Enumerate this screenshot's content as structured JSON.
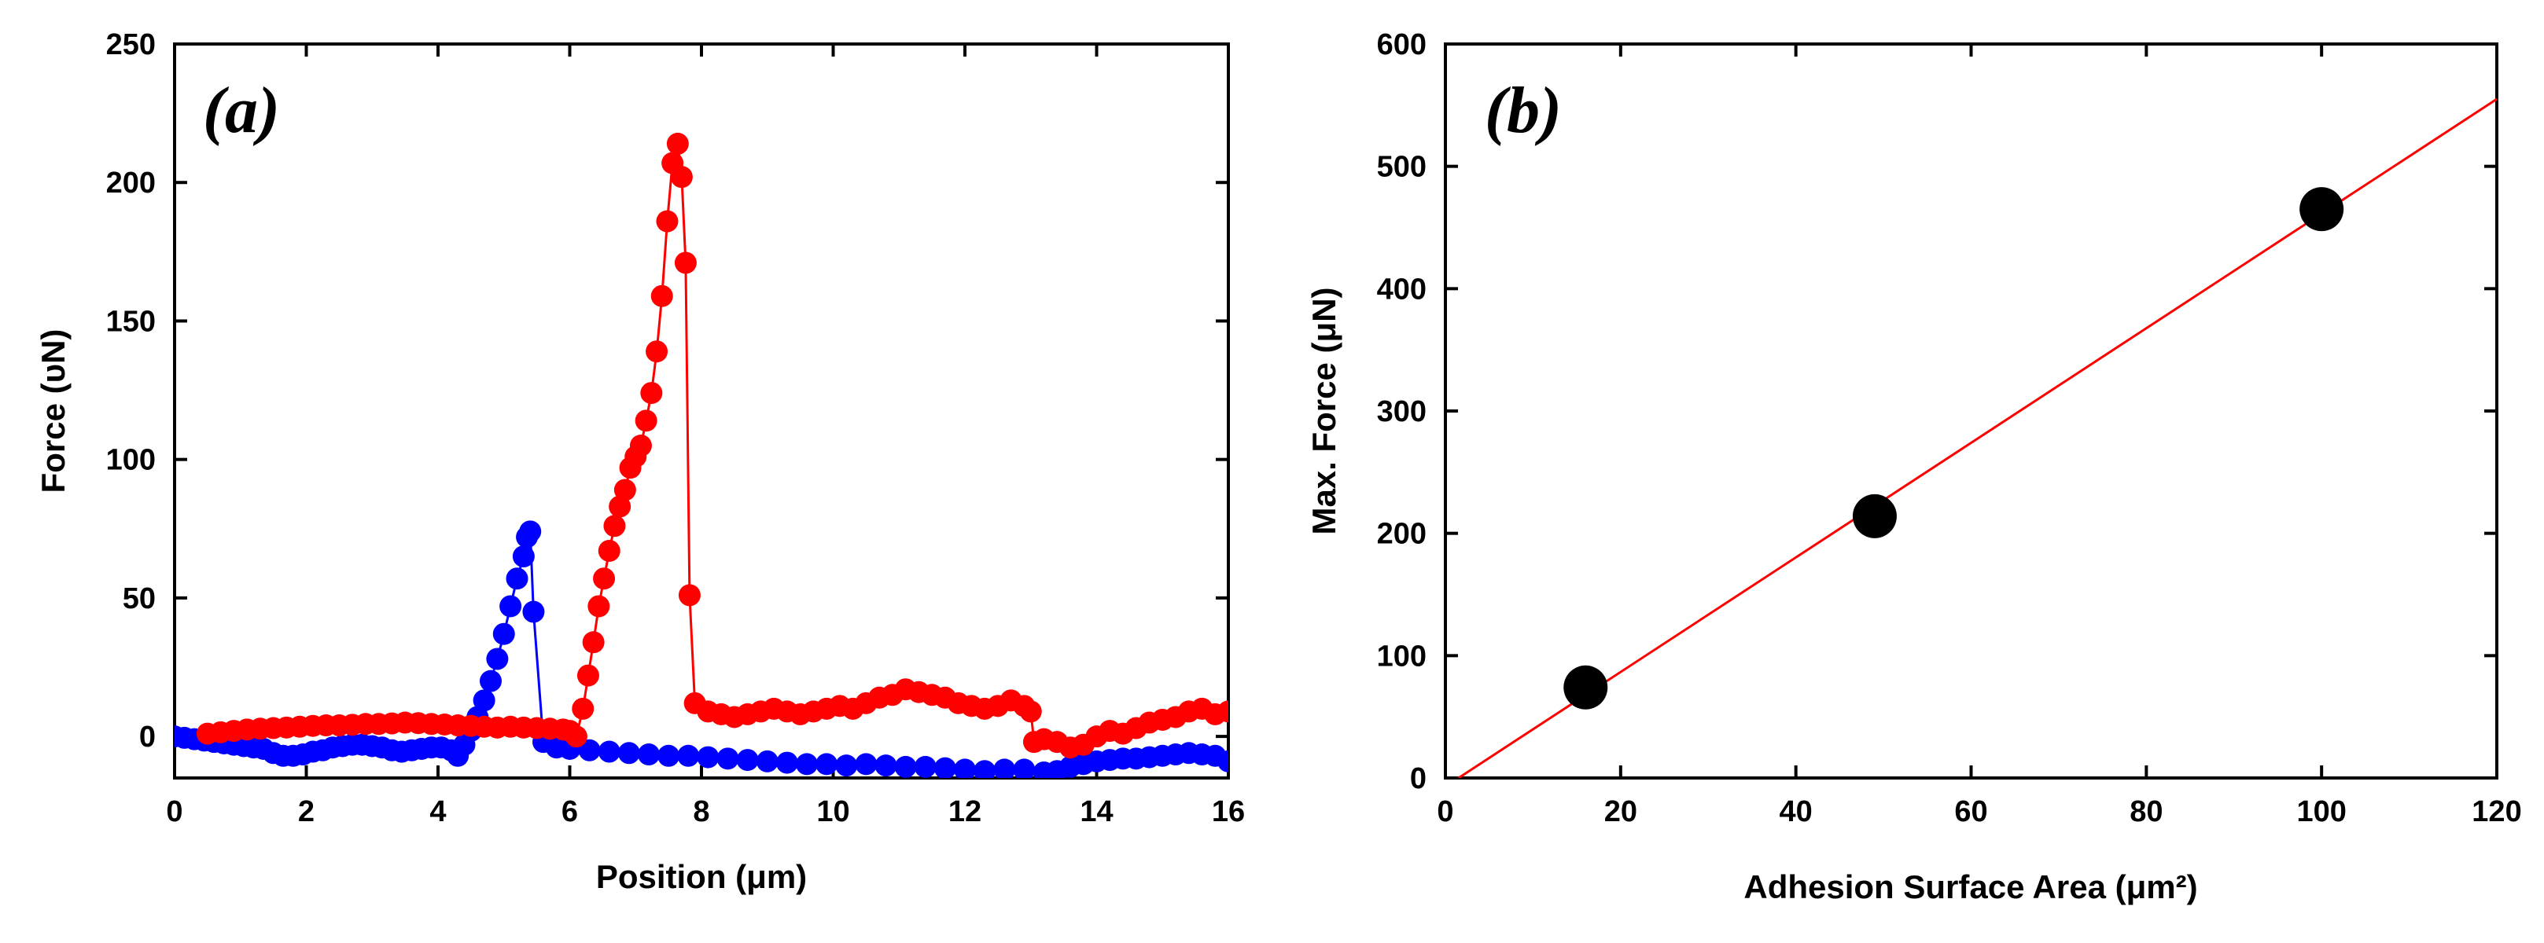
{
  "chart_data": [
    {
      "type": "scatter",
      "panel_label": "(a)",
      "xlabel": "Position (μm)",
      "ylabel": "Force (υN)",
      "xlim": [
        0,
        16
      ],
      "ylim": [
        -15,
        250
      ],
      "xticks": [
        0,
        2,
        4,
        6,
        8,
        10,
        12,
        14,
        16
      ],
      "yticks": [
        0,
        50,
        100,
        150,
        200,
        250
      ],
      "series": [
        {
          "name": "blue",
          "color": "#0000ff",
          "points": [
            [
              0,
              0
            ],
            [
              0.15,
              -0.5
            ],
            [
              0.3,
              -1
            ],
            [
              0.45,
              -1.5
            ],
            [
              0.6,
              -2
            ],
            [
              0.75,
              -2.5
            ],
            [
              0.9,
              -3
            ],
            [
              1.05,
              -3.5
            ],
            [
              1.2,
              -4
            ],
            [
              1.35,
              -4.5
            ],
            [
              1.5,
              -6
            ],
            [
              1.65,
              -7
            ],
            [
              1.8,
              -7
            ],
            [
              1.95,
              -6.5
            ],
            [
              2.1,
              -5.5
            ],
            [
              2.25,
              -5
            ],
            [
              2.4,
              -4
            ],
            [
              2.55,
              -3.5
            ],
            [
              2.7,
              -3
            ],
            [
              2.85,
              -3
            ],
            [
              3.0,
              -3.5
            ],
            [
              3.15,
              -4
            ],
            [
              3.3,
              -5
            ],
            [
              3.45,
              -5.5
            ],
            [
              3.6,
              -5
            ],
            [
              3.75,
              -4.5
            ],
            [
              3.9,
              -4
            ],
            [
              4.05,
              -4
            ],
            [
              4.2,
              -5
            ],
            [
              4.3,
              -7
            ],
            [
              4.4,
              -3
            ],
            [
              4.5,
              2
            ],
            [
              4.6,
              7
            ],
            [
              4.7,
              13
            ],
            [
              4.8,
              20
            ],
            [
              4.9,
              28
            ],
            [
              5.0,
              37
            ],
            [
              5.1,
              47
            ],
            [
              5.2,
              57
            ],
            [
              5.3,
              65
            ],
            [
              5.35,
              72
            ],
            [
              5.4,
              74
            ],
            [
              5.45,
              45
            ],
            [
              5.6,
              -2
            ],
            [
              5.8,
              -4
            ],
            [
              6.0,
              -4.5
            ],
            [
              6.3,
              -5
            ],
            [
              6.6,
              -5.5
            ],
            [
              6.9,
              -6
            ],
            [
              7.2,
              -6.5
            ],
            [
              7.5,
              -7
            ],
            [
              7.8,
              -7
            ],
            [
              8.1,
              -7.5
            ],
            [
              8.4,
              -8
            ],
            [
              8.7,
              -8.5
            ],
            [
              9.0,
              -9
            ],
            [
              9.3,
              -9.5
            ],
            [
              9.6,
              -10
            ],
            [
              9.9,
              -10
            ],
            [
              10.2,
              -10.5
            ],
            [
              10.5,
              -10
            ],
            [
              10.8,
              -10.5
            ],
            [
              11.1,
              -11
            ],
            [
              11.4,
              -11
            ],
            [
              11.7,
              -11.5
            ],
            [
              12.0,
              -12
            ],
            [
              12.3,
              -12.5
            ],
            [
              12.6,
              -12
            ],
            [
              12.9,
              -12
            ],
            [
              13.2,
              -13
            ],
            [
              13.4,
              -12.5
            ],
            [
              13.6,
              -11
            ],
            [
              13.8,
              -10
            ],
            [
              14.0,
              -9
            ],
            [
              14.2,
              -8.5
            ],
            [
              14.4,
              -8
            ],
            [
              14.6,
              -8
            ],
            [
              14.8,
              -7.5
            ],
            [
              15.0,
              -7
            ],
            [
              15.2,
              -6.5
            ],
            [
              15.4,
              -6
            ],
            [
              15.6,
              -6.5
            ],
            [
              15.8,
              -7
            ],
            [
              16.0,
              -9
            ]
          ]
        },
        {
          "name": "red",
          "color": "#ff0000",
          "points": [
            [
              0.5,
              1
            ],
            [
              0.7,
              1.5
            ],
            [
              0.9,
              2
            ],
            [
              1.1,
              2.5
            ],
            [
              1.3,
              2.8
            ],
            [
              1.5,
              3
            ],
            [
              1.7,
              3.2
            ],
            [
              1.9,
              3.5
            ],
            [
              2.1,
              3.8
            ],
            [
              2.3,
              4
            ],
            [
              2.5,
              4
            ],
            [
              2.7,
              4.2
            ],
            [
              2.9,
              4.5
            ],
            [
              3.1,
              4.5
            ],
            [
              3.3,
              4.7
            ],
            [
              3.5,
              5
            ],
            [
              3.7,
              4.8
            ],
            [
              3.9,
              4.5
            ],
            [
              4.1,
              4.3
            ],
            [
              4.3,
              4
            ],
            [
              4.5,
              3.8
            ],
            [
              4.7,
              3.5
            ],
            [
              4.9,
              3.2
            ],
            [
              5.1,
              3.5
            ],
            [
              5.3,
              3.2
            ],
            [
              5.5,
              3
            ],
            [
              5.7,
              2.8
            ],
            [
              5.9,
              2.5
            ],
            [
              6.0,
              2
            ],
            [
              6.1,
              0
            ],
            [
              6.2,
              10
            ],
            [
              6.28,
              22
            ],
            [
              6.36,
              34
            ],
            [
              6.44,
              47
            ],
            [
              6.52,
              57
            ],
            [
              6.6,
              67
            ],
            [
              6.68,
              76
            ],
            [
              6.76,
              83
            ],
            [
              6.84,
              89
            ],
            [
              6.92,
              97
            ],
            [
              7.0,
              101
            ],
            [
              7.08,
              105
            ],
            [
              7.16,
              114
            ],
            [
              7.24,
              124
            ],
            [
              7.32,
              139
            ],
            [
              7.4,
              159
            ],
            [
              7.48,
              186
            ],
            [
              7.56,
              207
            ],
            [
              7.64,
              214
            ],
            [
              7.7,
              202
            ],
            [
              7.76,
              171
            ],
            [
              7.82,
              51
            ],
            [
              7.9,
              12
            ],
            [
              8.1,
              9
            ],
            [
              8.3,
              8
            ],
            [
              8.5,
              7
            ],
            [
              8.7,
              8
            ],
            [
              8.9,
              9
            ],
            [
              9.1,
              10
            ],
            [
              9.3,
              9
            ],
            [
              9.5,
              8
            ],
            [
              9.7,
              9
            ],
            [
              9.9,
              10
            ],
            [
              10.1,
              11
            ],
            [
              10.3,
              10
            ],
            [
              10.5,
              12
            ],
            [
              10.7,
              14
            ],
            [
              10.9,
              15
            ],
            [
              11.1,
              17
            ],
            [
              11.3,
              16
            ],
            [
              11.5,
              15
            ],
            [
              11.7,
              14
            ],
            [
              11.9,
              12
            ],
            [
              12.1,
              11
            ],
            [
              12.3,
              10
            ],
            [
              12.5,
              11
            ],
            [
              12.7,
              13
            ],
            [
              12.9,
              11
            ],
            [
              13.0,
              9
            ],
            [
              13.05,
              -2
            ],
            [
              13.2,
              -1
            ],
            [
              13.4,
              -2
            ],
            [
              13.6,
              -4
            ],
            [
              13.8,
              -3
            ],
            [
              14.0,
              0
            ],
            [
              14.2,
              2
            ],
            [
              14.4,
              1
            ],
            [
              14.6,
              3
            ],
            [
              14.8,
              5
            ],
            [
              15.0,
              6
            ],
            [
              15.2,
              7
            ],
            [
              15.4,
              9
            ],
            [
              15.6,
              10
            ],
            [
              15.8,
              8
            ],
            [
              16.0,
              9
            ]
          ]
        }
      ]
    },
    {
      "type": "scatter",
      "panel_label": "(b)",
      "xlabel": "Adhesion Surface Area (μm²)",
      "ylabel": "Max. Force (μN)",
      "xlim": [
        0,
        120
      ],
      "ylim": [
        0,
        600
      ],
      "xticks": [
        0,
        20,
        40,
        60,
        80,
        100,
        120
      ],
      "yticks": [
        0,
        100,
        200,
        300,
        400,
        500,
        600
      ],
      "points": [
        [
          16,
          74
        ],
        [
          49,
          214
        ],
        [
          100,
          465
        ]
      ],
      "fit_line": {
        "color": "#ff0000",
        "x": [
          1.5,
          120
        ],
        "y": [
          0,
          555
        ]
      }
    }
  ]
}
